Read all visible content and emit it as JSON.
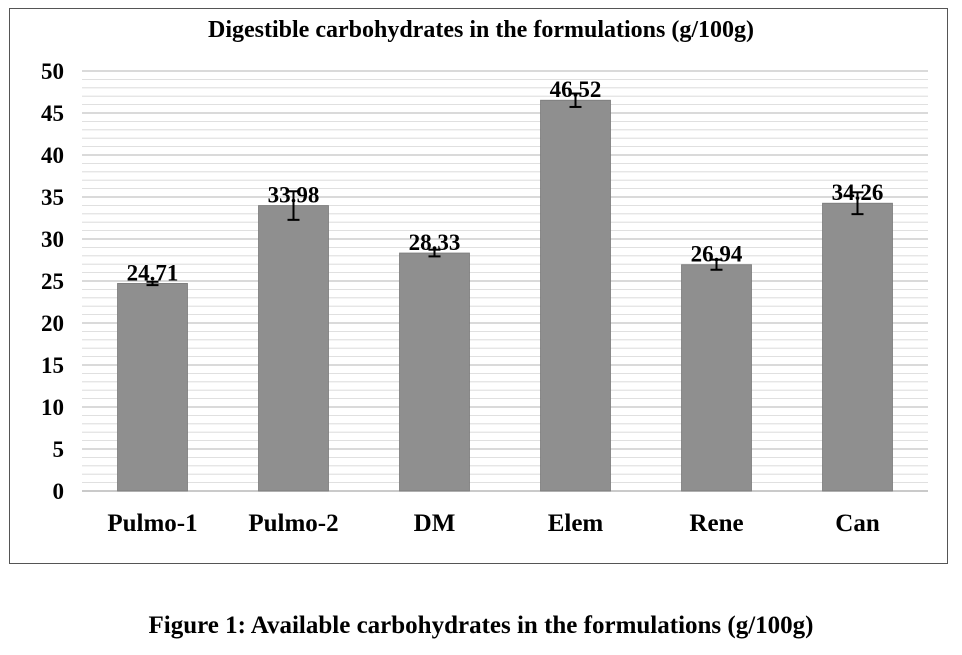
{
  "chart_data": {
    "type": "bar",
    "title": "Digestible carbohydrates in the formulations (g/100g)",
    "categories": [
      "Pulmo-1",
      "Pulmo-2",
      "DM",
      "Elem",
      "Rene",
      "Can"
    ],
    "values": [
      24.71,
      33.98,
      28.33,
      46.52,
      26.94,
      34.26
    ],
    "data_labels": [
      "24.71",
      "33.98",
      "28.33",
      "46.52",
      "26.94",
      "34.26"
    ],
    "error": [
      0.2,
      1.7,
      0.4,
      0.8,
      0.6,
      1.3
    ],
    "ylim": [
      0,
      50
    ],
    "yticks": [
      "0",
      "5",
      "10",
      "15",
      "20",
      "25",
      "30",
      "35",
      "40",
      "45",
      "50"
    ],
    "minor_grid_step": 1,
    "grid": true,
    "legend": "none",
    "bar_color": "#8f8f8f",
    "grid_color": "#d6d6d6",
    "xlabel": "",
    "ylabel": ""
  },
  "caption": "Figure 1: Available carbohydrates in the formulations (g/100g)"
}
